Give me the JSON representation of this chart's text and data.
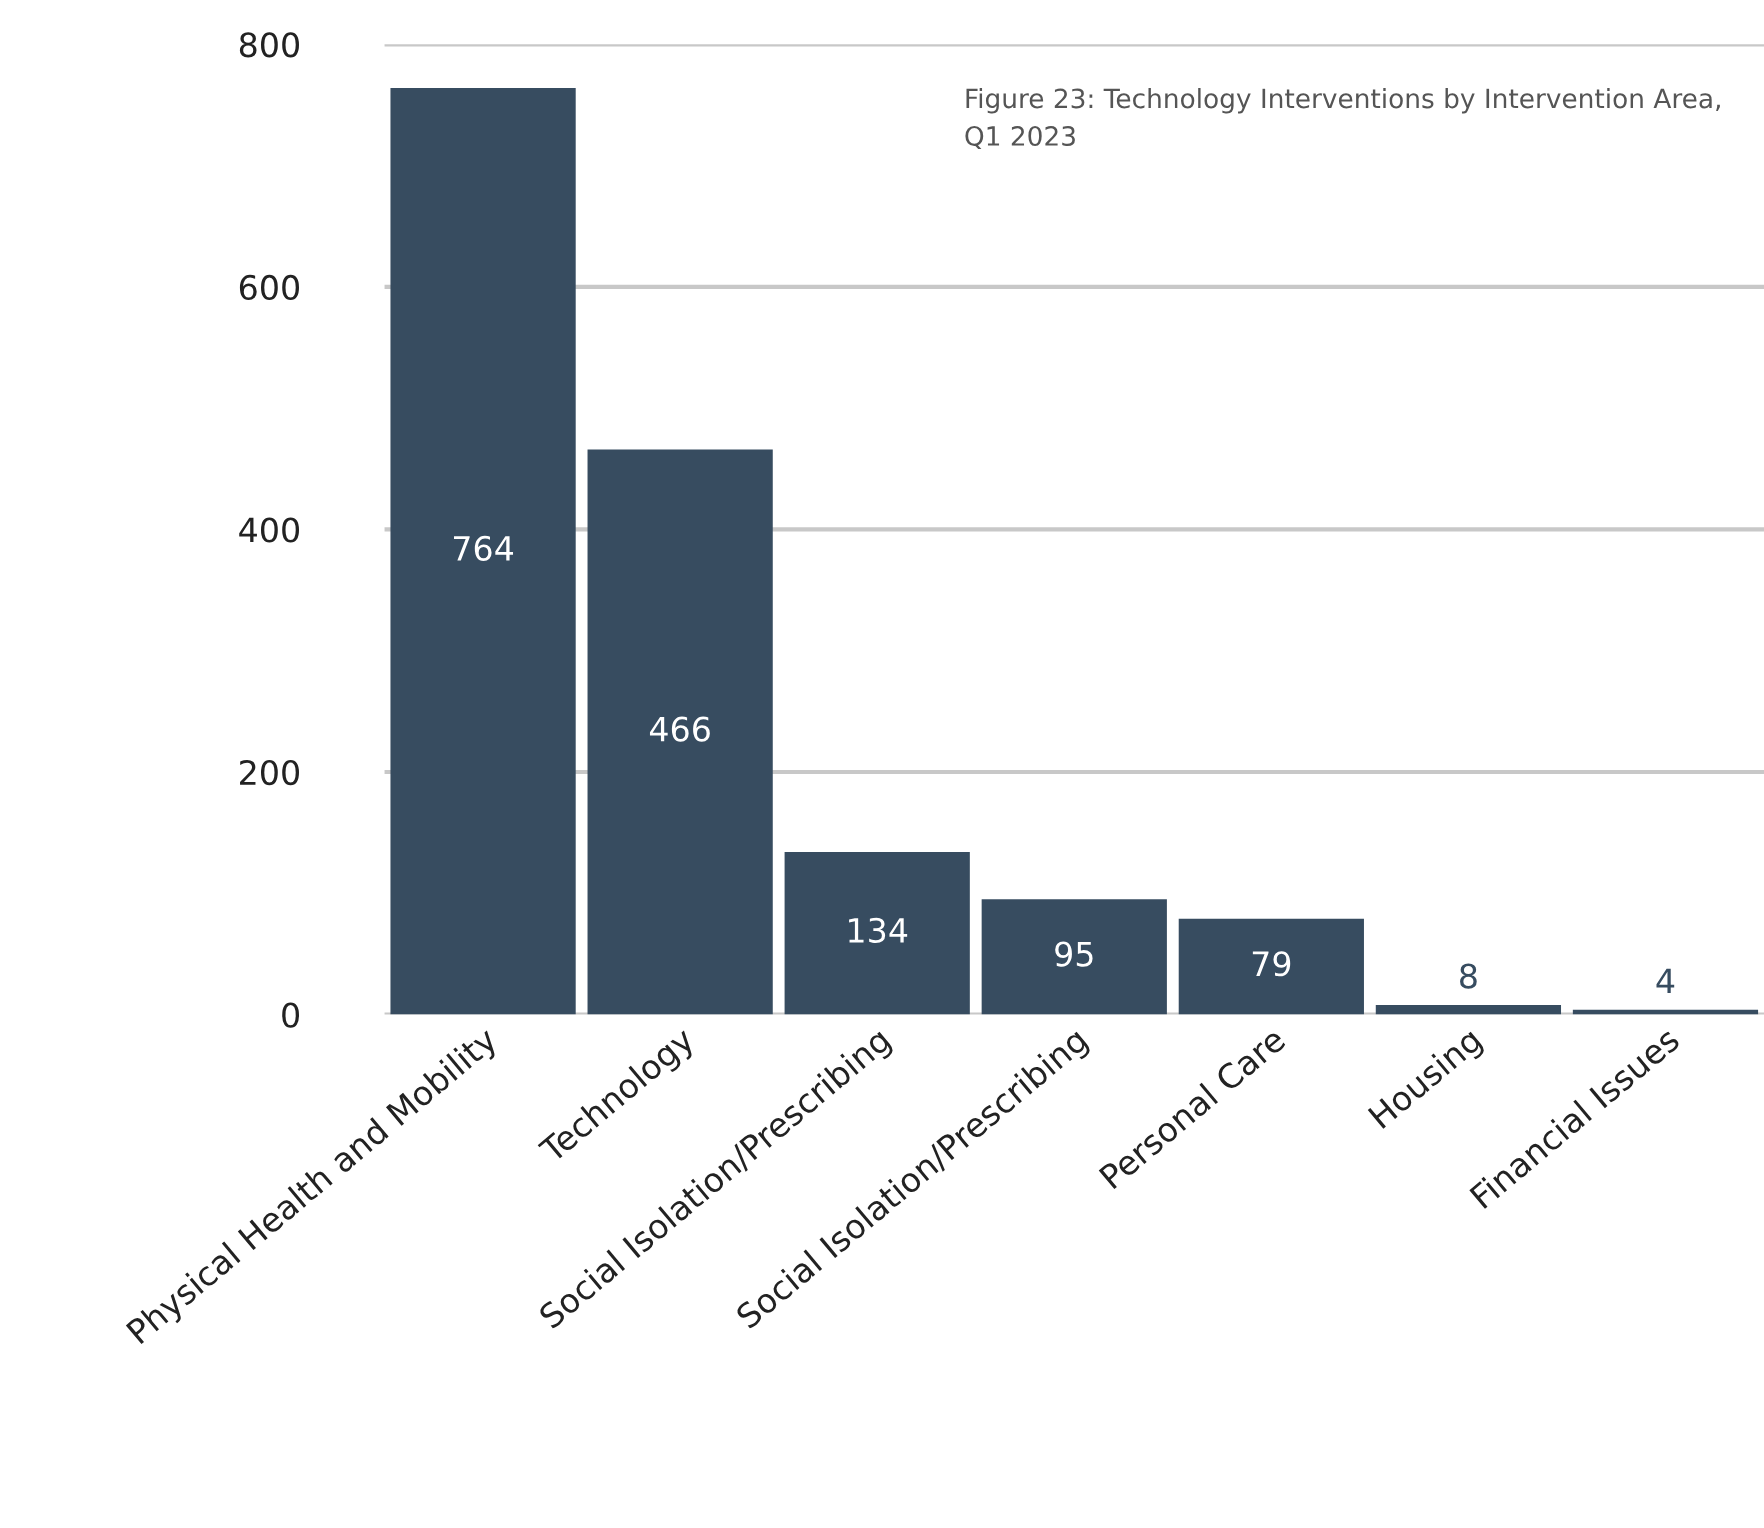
{
  "chart_data": {
    "type": "bar",
    "title": "Figure 23: Technology Interventions by Intervention Area, Q1 2023",
    "categories": [
      "Physical Health and Mobility",
      "Technology",
      "Social Isolation/Prescribing",
      "Social Isolation/Prescribing",
      "Personal Care",
      "Housing",
      "Financial Issues"
    ],
    "values": [
      764,
      466,
      134,
      95,
      79,
      8,
      4
    ],
    "color": "#374c60",
    "ylim": [
      0,
      800
    ],
    "yticks": [
      0,
      200,
      400,
      600,
      800
    ],
    "grid": "y",
    "data_labels": true
  }
}
